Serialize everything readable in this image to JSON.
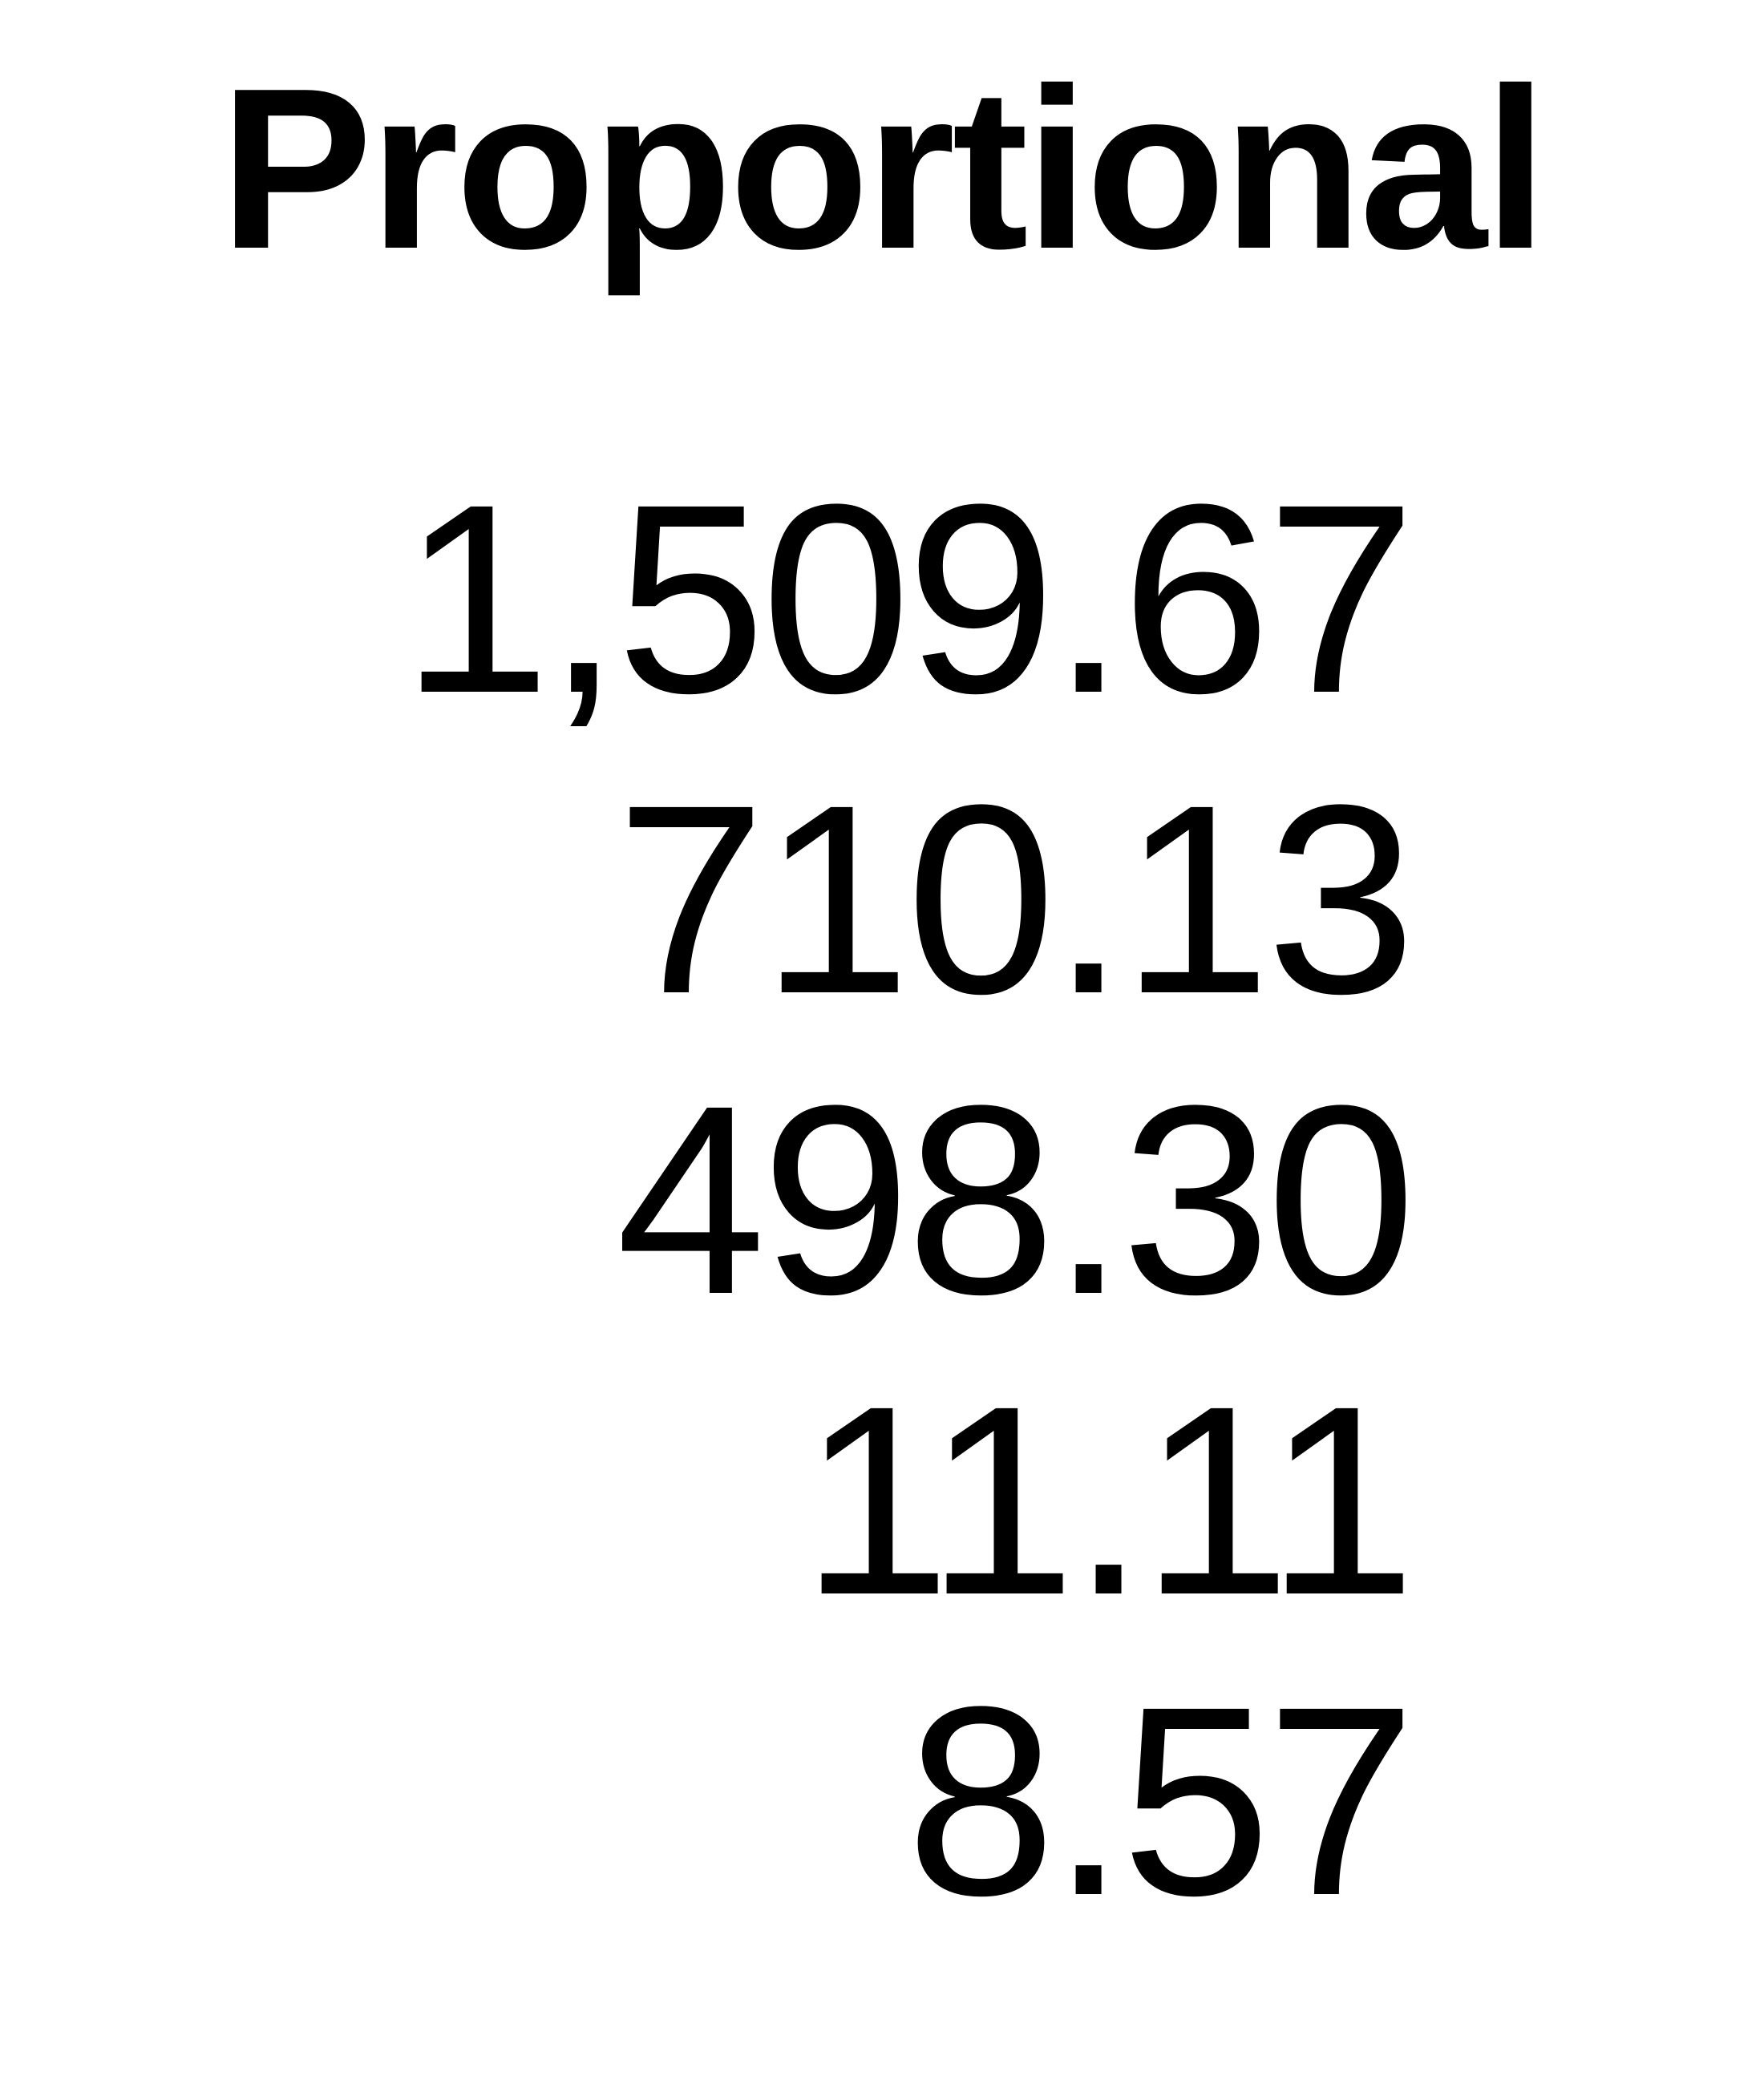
{
  "title": "Proportional",
  "numbers": [
    "1,509.67",
    "710.13",
    "498.30",
    "11.11",
    "8.57"
  ]
}
